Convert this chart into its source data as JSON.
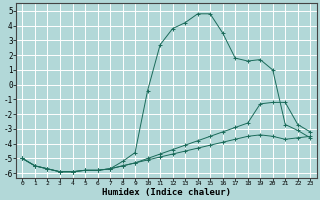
{
  "xlabel": "Humidex (Indice chaleur)",
  "xlim_left": -0.5,
  "xlim_right": 23.5,
  "ylim_bottom": -6.3,
  "ylim_top": 5.5,
  "yticks": [
    -6,
    -5,
    -4,
    -3,
    -2,
    -1,
    0,
    1,
    2,
    3,
    4,
    5
  ],
  "xticks": [
    0,
    1,
    2,
    3,
    4,
    5,
    6,
    7,
    8,
    9,
    10,
    11,
    12,
    13,
    14,
    15,
    16,
    17,
    18,
    19,
    20,
    21,
    22,
    23
  ],
  "bg_color": "#b2d8d8",
  "grid_color": "#ffffff",
  "line_color": "#1a6b5a",
  "series1_x": [
    0,
    1,
    2,
    3,
    4,
    5,
    6,
    7,
    8,
    9,
    10,
    11,
    12,
    13,
    14,
    15,
    16,
    17,
    18,
    19,
    20,
    21,
    22,
    23
  ],
  "series1_y": [
    -5.0,
    -5.5,
    -5.7,
    -5.9,
    -5.9,
    -5.8,
    -5.8,
    -5.7,
    -5.2,
    -4.6,
    -0.4,
    2.7,
    3.8,
    4.2,
    4.8,
    4.8,
    3.5,
    1.8,
    1.6,
    1.7,
    1.0,
    -2.7,
    -3.1,
    -3.6
  ],
  "series2_x": [
    0,
    1,
    2,
    3,
    4,
    5,
    6,
    7,
    8,
    9,
    10,
    11,
    12,
    13,
    14,
    15,
    16,
    17,
    18,
    19,
    20,
    21,
    22,
    23
  ],
  "series2_y": [
    -5.0,
    -5.5,
    -5.7,
    -5.9,
    -5.9,
    -5.8,
    -5.8,
    -5.7,
    -5.5,
    -5.3,
    -5.0,
    -4.7,
    -4.4,
    -4.1,
    -3.8,
    -3.5,
    -3.2,
    -2.9,
    -2.6,
    -1.3,
    -1.2,
    -1.2,
    -2.7,
    -3.2
  ],
  "series3_x": [
    0,
    1,
    2,
    3,
    4,
    5,
    6,
    7,
    8,
    9,
    10,
    11,
    12,
    13,
    14,
    15,
    16,
    17,
    18,
    19,
    20,
    21,
    22,
    23
  ],
  "series3_y": [
    -5.0,
    -5.5,
    -5.7,
    -5.9,
    -5.9,
    -5.8,
    -5.8,
    -5.7,
    -5.5,
    -5.3,
    -5.1,
    -4.9,
    -4.7,
    -4.5,
    -4.3,
    -4.1,
    -3.9,
    -3.7,
    -3.5,
    -3.4,
    -3.5,
    -3.7,
    -3.6,
    -3.5
  ]
}
